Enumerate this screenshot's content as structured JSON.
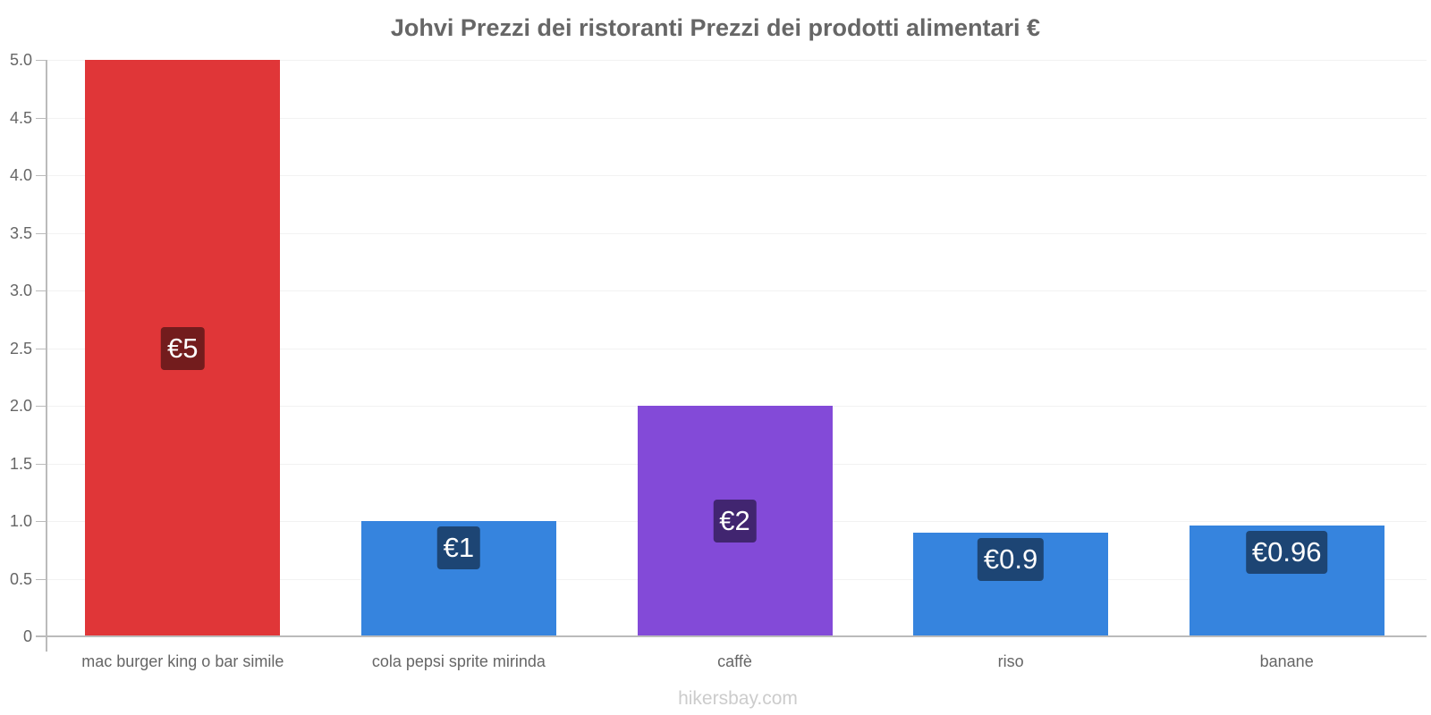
{
  "chart_data": {
    "type": "bar",
    "title": "Johvi Prezzi dei ristoranti Prezzi dei prodotti alimentari €",
    "xlabel": "",
    "ylabel": "",
    "ylim": [
      0,
      5.0
    ],
    "grid": true,
    "legend": null,
    "yticks": [
      "0",
      "0.5",
      "1.0",
      "1.5",
      "2.0",
      "2.5",
      "3.0",
      "3.5",
      "4.0",
      "4.5",
      "5.0"
    ],
    "categories": [
      "mac burger king o bar simile",
      "cola pepsi sprite mirinda",
      "caffè",
      "riso",
      "banane"
    ],
    "values": [
      5,
      1,
      2,
      0.9,
      0.96
    ],
    "labels": [
      "€5",
      "€1",
      "€2",
      "€0.9",
      "€0.96"
    ],
    "colors": [
      "#e03638",
      "#3684de",
      "#834ad8",
      "#3684de",
      "#3684de"
    ],
    "label_bg_colors": [
      "#731c1d",
      "#1d4574",
      "#412570",
      "#1d4574",
      "#1d4574"
    ]
  },
  "watermark": "hikersbay.com"
}
